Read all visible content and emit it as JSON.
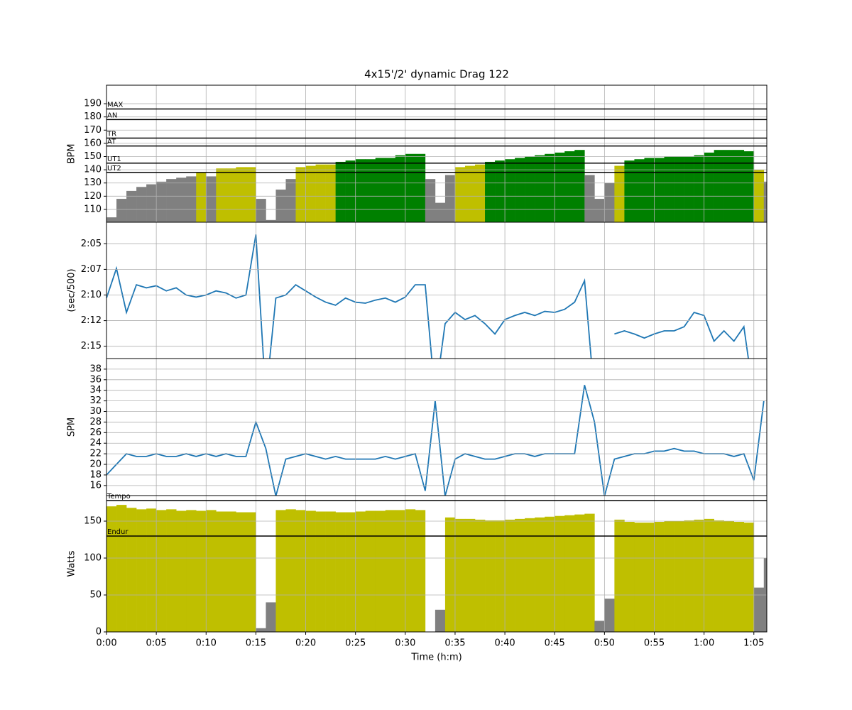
{
  "chart_data": [
    {
      "type": "bar",
      "title": "4x15'/2' dynamic Drag 122",
      "ylabel": "BPM",
      "x": [
        0,
        1,
        2,
        3,
        4,
        5,
        6,
        7,
        8,
        9,
        10,
        11,
        12,
        13,
        14,
        15,
        16,
        17,
        18,
        19,
        20,
        21,
        22,
        23,
        24,
        25,
        26,
        27,
        28,
        29,
        30,
        31,
        32,
        33,
        34,
        35,
        36,
        37,
        38,
        39,
        40,
        41,
        42,
        43,
        44,
        45,
        46,
        47,
        48,
        49,
        50,
        51,
        52,
        53,
        54,
        55,
        56,
        57,
        58,
        59,
        60,
        61,
        62,
        63,
        64,
        65,
        66
      ],
      "values": [
        104,
        118,
        124,
        127,
        129,
        131,
        133,
        134,
        135,
        138,
        135,
        141,
        141,
        142,
        142,
        118,
        102,
        125,
        133,
        142,
        143,
        144,
        144,
        146,
        147,
        148,
        148,
        149,
        149,
        151,
        152,
        152,
        133,
        115,
        136,
        142,
        143,
        144,
        146,
        147,
        148,
        149,
        150,
        151,
        152,
        153,
        154,
        155,
        136,
        118,
        130,
        143,
        147,
        148,
        149,
        149,
        150,
        150,
        150,
        151,
        153,
        155,
        155,
        155,
        154,
        140,
        131
      ],
      "base_color": "#808080",
      "ylim": [
        100.3,
        204
      ],
      "yticks": [
        110,
        120,
        130,
        140,
        150,
        160,
        170,
        180,
        190
      ],
      "grid": true,
      "zones": [
        {
          "name": "MAX",
          "value": 186
        },
        {
          "name": "AN",
          "value": 178
        },
        {
          "name": "TR",
          "value": 164
        },
        {
          "name": "AT",
          "value": 158
        },
        {
          "name": "UT1",
          "value": 145,
          "fill": "#008000"
        },
        {
          "name": "UT2",
          "value": 138,
          "fill": "#bfbf00"
        }
      ]
    },
    {
      "type": "line",
      "ylabel": "(sec/500)",
      "x": [
        0,
        1,
        2,
        3,
        4,
        5,
        6,
        7,
        8,
        9,
        10,
        11,
        12,
        13,
        14,
        15,
        16,
        17,
        18,
        19,
        20,
        21,
        22,
        23,
        24,
        25,
        26,
        27,
        28,
        29,
        30,
        31,
        32,
        33,
        34,
        35,
        36,
        37,
        38,
        39,
        40,
        41,
        42,
        43,
        44,
        45,
        46,
        47,
        48,
        49,
        50,
        51,
        52,
        53,
        54,
        55,
        56,
        57,
        58,
        59,
        60,
        61,
        62,
        63,
        64,
        65,
        66
      ],
      "values": [
        130.3,
        127.4,
        131.7,
        129,
        129.3,
        129.1,
        129.6,
        129.3,
        130,
        130.2,
        130,
        129.6,
        129.8,
        130.3,
        130,
        124.1,
        140,
        130.3,
        130,
        129,
        129.6,
        130.2,
        130.7,
        131,
        130.3,
        130.7,
        130.8,
        130.5,
        130.3,
        130.7,
        130.2,
        129,
        129,
        140,
        132.8,
        131.7,
        132.4,
        132,
        132.8,
        133.8,
        132.4,
        132,
        131.7,
        132,
        131.6,
        131.7,
        131.4,
        130.7,
        128.6,
        140,
        null,
        133.8,
        133.5,
        133.8,
        134.2,
        133.8,
        133.5,
        133.5,
        133.1,
        131.7,
        132,
        134.5,
        133.5,
        134.5,
        133.1,
        140,
        null
      ],
      "color": "#1f77b4",
      "ylim": [
        136.2,
        122.9
      ],
      "yticks": [
        {
          "value": 125,
          "label": "2:05"
        },
        {
          "value": 127.5,
          "label": "2:07"
        },
        {
          "value": 130,
          "label": "2:10"
        },
        {
          "value": 132.5,
          "label": "2:12"
        },
        {
          "value": 135,
          "label": "2:15"
        }
      ],
      "grid": true
    },
    {
      "type": "line",
      "ylabel": "SPM",
      "x": [
        0,
        1,
        2,
        3,
        4,
        5,
        6,
        7,
        8,
        9,
        10,
        11,
        12,
        13,
        14,
        15,
        16,
        17,
        18,
        19,
        20,
        21,
        22,
        23,
        24,
        25,
        26,
        27,
        28,
        29,
        30,
        31,
        32,
        33,
        34,
        35,
        36,
        37,
        38,
        39,
        40,
        41,
        42,
        43,
        44,
        45,
        46,
        47,
        48,
        49,
        50,
        51,
        52,
        53,
        54,
        55,
        56,
        57,
        58,
        59,
        60,
        61,
        62,
        63,
        64,
        65,
        66
      ],
      "values": [
        18,
        20,
        22,
        21.5,
        21.5,
        22,
        21.5,
        21.5,
        22,
        21.5,
        22,
        21.5,
        22,
        21.5,
        21.5,
        28,
        23,
        14,
        21,
        21.5,
        22,
        21.5,
        21,
        21.5,
        21,
        21,
        21,
        21,
        21.5,
        21,
        21.5,
        22,
        15,
        32,
        14,
        21,
        22,
        21.5,
        21,
        21,
        21.5,
        22,
        22,
        21.5,
        22,
        22,
        22,
        22,
        35,
        28,
        14,
        21,
        21.5,
        22,
        22,
        22.5,
        22.5,
        23,
        22.5,
        22.5,
        22,
        22,
        22,
        21.5,
        22,
        17,
        32
      ],
      "color": "#1f77b4",
      "ylim": [
        14.1,
        40
      ],
      "yticks": [
        16,
        18,
        20,
        22,
        24,
        26,
        28,
        30,
        32,
        34,
        36,
        38
      ],
      "grid": true
    },
    {
      "type": "bar",
      "ylabel": "Watts",
      "xlabel": "Time (h:m)",
      "x": [
        0,
        1,
        2,
        3,
        4,
        5,
        6,
        7,
        8,
        9,
        10,
        11,
        12,
        13,
        14,
        15,
        16,
        17,
        18,
        19,
        20,
        21,
        22,
        23,
        24,
        25,
        26,
        27,
        28,
        29,
        30,
        31,
        32,
        33,
        34,
        35,
        36,
        37,
        38,
        39,
        40,
        41,
        42,
        43,
        44,
        45,
        46,
        47,
        48,
        49,
        50,
        51,
        52,
        53,
        54,
        55,
        56,
        57,
        58,
        59,
        60,
        61,
        62,
        63,
        64,
        65,
        66
      ],
      "values": [
        170,
        172,
        168,
        166,
        167,
        165,
        166,
        164,
        165,
        164,
        165,
        163,
        163,
        162,
        162,
        5,
        40,
        165,
        166,
        165,
        164,
        163,
        163,
        162,
        162,
        163,
        164,
        164,
        165,
        165,
        166,
        165,
        0,
        30,
        155,
        153,
        153,
        152,
        151,
        151,
        152,
        153,
        154,
        155,
        156,
        157,
        158,
        159,
        160,
        15,
        45,
        152,
        149,
        148,
        148,
        149,
        150,
        150,
        151,
        152,
        153,
        151,
        150,
        149,
        148,
        60,
        100
      ],
      "base_color": "#808080",
      "ylim": [
        0,
        184.6
      ],
      "yticks": [
        0,
        50,
        100,
        150
      ],
      "grid": true,
      "xlim": [
        0,
        66.3
      ],
      "xticks": [
        {
          "value": 0,
          "label": "0:00"
        },
        {
          "value": 5,
          "label": "0:05"
        },
        {
          "value": 10,
          "label": "0:10"
        },
        {
          "value": 15,
          "label": "0:15"
        },
        {
          "value": 20,
          "label": "0:20"
        },
        {
          "value": 25,
          "label": "0:25"
        },
        {
          "value": 30,
          "label": "0:30"
        },
        {
          "value": 35,
          "label": "0:35"
        },
        {
          "value": 40,
          "label": "0:40"
        },
        {
          "value": 45,
          "label": "0:45"
        },
        {
          "value": 50,
          "label": "0:50"
        },
        {
          "value": 55,
          "label": "0:55"
        },
        {
          "value": 60,
          "label": "1:00"
        },
        {
          "value": 65,
          "label": "1:05"
        }
      ],
      "zones": [
        {
          "name": "Tempo",
          "value": 177.9
        },
        {
          "name": "Endur",
          "value": 129.8,
          "fill": "#bfbf00"
        }
      ]
    }
  ]
}
